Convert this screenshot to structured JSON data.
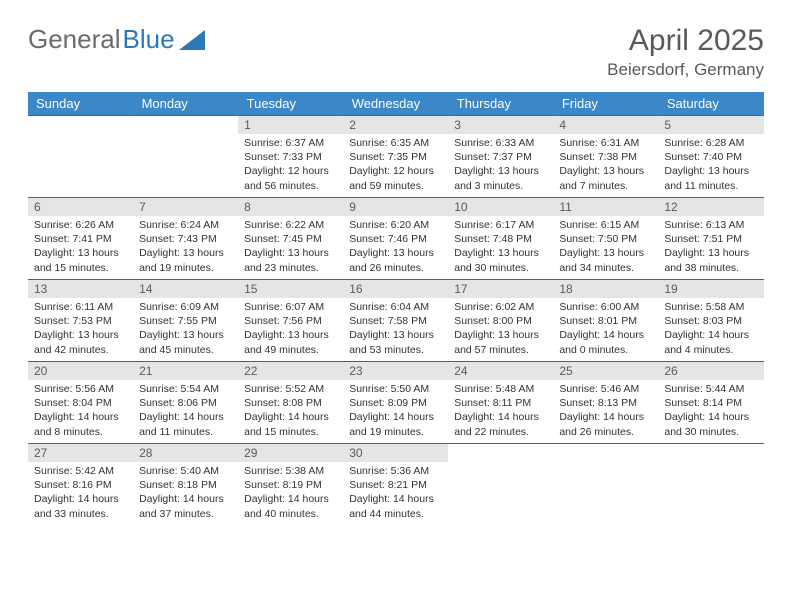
{
  "brand": {
    "part1": "General",
    "part2": "Blue"
  },
  "title": "April 2025",
  "location": "Beiersdorf, Germany",
  "colors": {
    "header_bg": "#3b87c8",
    "header_fg": "#ffffff",
    "daynum_bg": "#e5e5e5",
    "row_border": "#2d6aa0",
    "logo_grey": "#6b6b6b",
    "logo_blue": "#2d79b8",
    "title_color": "#5a5a5a"
  },
  "weekdays": [
    "Sunday",
    "Monday",
    "Tuesday",
    "Wednesday",
    "Thursday",
    "Friday",
    "Saturday"
  ],
  "layout": {
    "first_weekday_index": 2,
    "days_in_month": 30,
    "weeks": 5
  },
  "days": {
    "1": {
      "sunrise": "6:37 AM",
      "sunset": "7:33 PM",
      "daylight": "12 hours and 56 minutes."
    },
    "2": {
      "sunrise": "6:35 AM",
      "sunset": "7:35 PM",
      "daylight": "12 hours and 59 minutes."
    },
    "3": {
      "sunrise": "6:33 AM",
      "sunset": "7:37 PM",
      "daylight": "13 hours and 3 minutes."
    },
    "4": {
      "sunrise": "6:31 AM",
      "sunset": "7:38 PM",
      "daylight": "13 hours and 7 minutes."
    },
    "5": {
      "sunrise": "6:28 AM",
      "sunset": "7:40 PM",
      "daylight": "13 hours and 11 minutes."
    },
    "6": {
      "sunrise": "6:26 AM",
      "sunset": "7:41 PM",
      "daylight": "13 hours and 15 minutes."
    },
    "7": {
      "sunrise": "6:24 AM",
      "sunset": "7:43 PM",
      "daylight": "13 hours and 19 minutes."
    },
    "8": {
      "sunrise": "6:22 AM",
      "sunset": "7:45 PM",
      "daylight": "13 hours and 23 minutes."
    },
    "9": {
      "sunrise": "6:20 AM",
      "sunset": "7:46 PM",
      "daylight": "13 hours and 26 minutes."
    },
    "10": {
      "sunrise": "6:17 AM",
      "sunset": "7:48 PM",
      "daylight": "13 hours and 30 minutes."
    },
    "11": {
      "sunrise": "6:15 AM",
      "sunset": "7:50 PM",
      "daylight": "13 hours and 34 minutes."
    },
    "12": {
      "sunrise": "6:13 AM",
      "sunset": "7:51 PM",
      "daylight": "13 hours and 38 minutes."
    },
    "13": {
      "sunrise": "6:11 AM",
      "sunset": "7:53 PM",
      "daylight": "13 hours and 42 minutes."
    },
    "14": {
      "sunrise": "6:09 AM",
      "sunset": "7:55 PM",
      "daylight": "13 hours and 45 minutes."
    },
    "15": {
      "sunrise": "6:07 AM",
      "sunset": "7:56 PM",
      "daylight": "13 hours and 49 minutes."
    },
    "16": {
      "sunrise": "6:04 AM",
      "sunset": "7:58 PM",
      "daylight": "13 hours and 53 minutes."
    },
    "17": {
      "sunrise": "6:02 AM",
      "sunset": "8:00 PM",
      "daylight": "13 hours and 57 minutes."
    },
    "18": {
      "sunrise": "6:00 AM",
      "sunset": "8:01 PM",
      "daylight": "14 hours and 0 minutes."
    },
    "19": {
      "sunrise": "5:58 AM",
      "sunset": "8:03 PM",
      "daylight": "14 hours and 4 minutes."
    },
    "20": {
      "sunrise": "5:56 AM",
      "sunset": "8:04 PM",
      "daylight": "14 hours and 8 minutes."
    },
    "21": {
      "sunrise": "5:54 AM",
      "sunset": "8:06 PM",
      "daylight": "14 hours and 11 minutes."
    },
    "22": {
      "sunrise": "5:52 AM",
      "sunset": "8:08 PM",
      "daylight": "14 hours and 15 minutes."
    },
    "23": {
      "sunrise": "5:50 AM",
      "sunset": "8:09 PM",
      "daylight": "14 hours and 19 minutes."
    },
    "24": {
      "sunrise": "5:48 AM",
      "sunset": "8:11 PM",
      "daylight": "14 hours and 22 minutes."
    },
    "25": {
      "sunrise": "5:46 AM",
      "sunset": "8:13 PM",
      "daylight": "14 hours and 26 minutes."
    },
    "26": {
      "sunrise": "5:44 AM",
      "sunset": "8:14 PM",
      "daylight": "14 hours and 30 minutes."
    },
    "27": {
      "sunrise": "5:42 AM",
      "sunset": "8:16 PM",
      "daylight": "14 hours and 33 minutes."
    },
    "28": {
      "sunrise": "5:40 AM",
      "sunset": "8:18 PM",
      "daylight": "14 hours and 37 minutes."
    },
    "29": {
      "sunrise": "5:38 AM",
      "sunset": "8:19 PM",
      "daylight": "14 hours and 40 minutes."
    },
    "30": {
      "sunrise": "5:36 AM",
      "sunset": "8:21 PM",
      "daylight": "14 hours and 44 minutes."
    }
  },
  "labels": {
    "sunrise": "Sunrise:",
    "sunset": "Sunset:",
    "daylight": "Daylight:"
  }
}
